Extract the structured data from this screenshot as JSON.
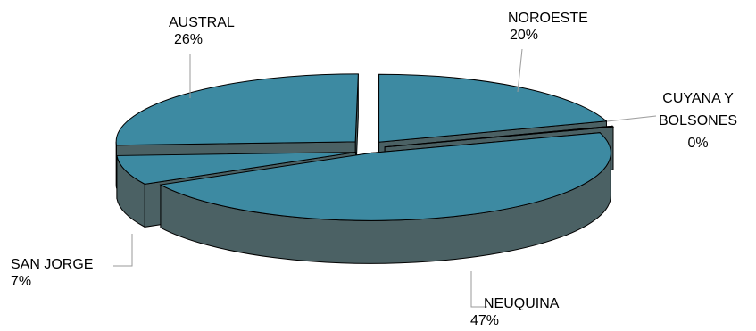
{
  "chart_data": {
    "type": "pie",
    "style": "3d-exploded",
    "slices": [
      {
        "name": "NOROESTE",
        "label_line1": "NOROESTE",
        "label_line2": "",
        "pct_label": "20%",
        "value": 20
      },
      {
        "name": "CUYANA Y BOLSONES",
        "label_line1": "CUYANA Y",
        "label_line2": "BOLSONES",
        "pct_label": "0%",
        "value": 0
      },
      {
        "name": "NEUQUINA",
        "label_line1": "NEUQUINA",
        "label_line2": "",
        "pct_label": "47%",
        "value": 47
      },
      {
        "name": "SAN JORGE",
        "label_line1": "SAN JORGE",
        "label_line2": "",
        "pct_label": "7%",
        "value": 7
      },
      {
        "name": "AUSTRAL",
        "label_line1": "AUSTRAL",
        "label_line2": "",
        "pct_label": "26%",
        "value": 26
      }
    ],
    "colors": {
      "top": "#3d8aa2",
      "side": "#4b6164",
      "edge": "#000000"
    }
  }
}
